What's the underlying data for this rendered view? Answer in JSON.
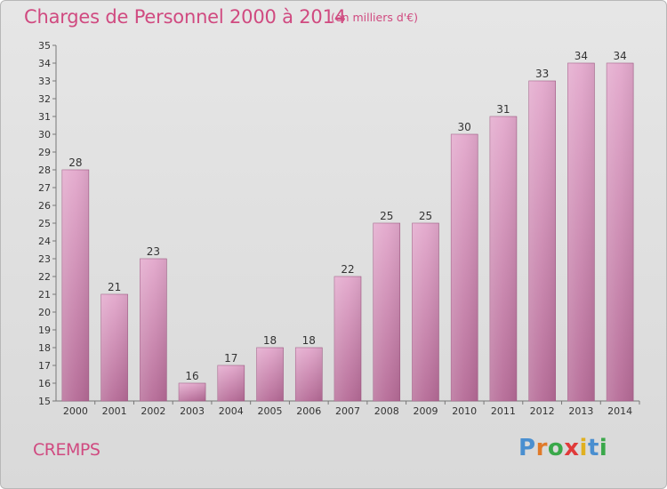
{
  "header": {
    "title": "Charges de Personnel 2000 à 2014",
    "subtitle": "(en milliers d'€)"
  },
  "footer": {
    "commune": "CREMPS",
    "brand_letters": [
      "P",
      "r",
      "o",
      "x",
      "i",
      "t",
      "i"
    ],
    "brand_colors": [
      "#4a8fd0",
      "#e07a2a",
      "#3aa84a",
      "#e03a3a",
      "#e0b020",
      "#4a8fd0",
      "#3aa84a"
    ]
  },
  "colors": {
    "title": "#d04a80",
    "bar_top": "#e3a8cc",
    "bar_bottom": "#b56a96",
    "axis_text": "#333333"
  },
  "chart_data": {
    "type": "bar",
    "title": "Charges de Personnel 2000 à 2014",
    "subtitle": "(en milliers d'€)",
    "categories": [
      "2000",
      "2001",
      "2002",
      "2003",
      "2004",
      "2005",
      "2006",
      "2007",
      "2008",
      "2009",
      "2010",
      "2011",
      "2012",
      "2013",
      "2014"
    ],
    "values": [
      28,
      21,
      23,
      16,
      17,
      18,
      18,
      22,
      25,
      25,
      30,
      31,
      33,
      34,
      34
    ],
    "ylim": [
      15,
      35
    ],
    "yticks": [
      15,
      16,
      17,
      18,
      19,
      20,
      21,
      22,
      23,
      24,
      25,
      26,
      27,
      28,
      29,
      30,
      31,
      32,
      33,
      34,
      35
    ],
    "grid": false,
    "data_labels": true
  }
}
